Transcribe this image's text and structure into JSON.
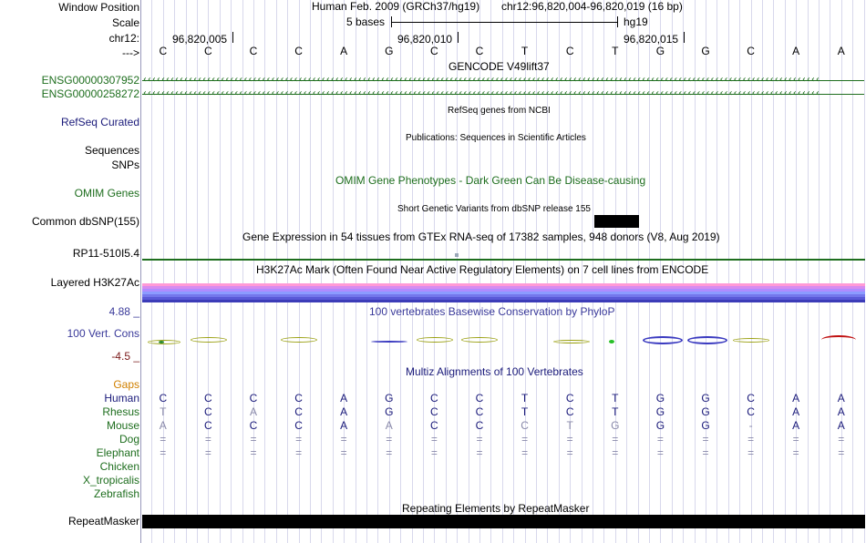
{
  "labels": {
    "window_position": "Window Position",
    "scale": "Scale",
    "chr": "chr12:",
    "arrow": "--->",
    "gene1": "ENSG00000307952",
    "gene2": "ENSG00000258272",
    "refseq": "RefSeq Curated",
    "sequences": "Sequences",
    "snps": "SNPs",
    "omim": "OMIM Genes",
    "dbsnp": "Common dbSNP(155)",
    "gtex_gene": "RP11-510I5.4",
    "h3k27ac": "Layered H3K27Ac",
    "phylop_max": "4.88 _",
    "cons": "100 Vert. Cons",
    "phylop_min": "-4.5 _",
    "gaps": "Gaps",
    "repeatmasker": "RepeatMasker"
  },
  "header": {
    "assembly": "Human Feb. 2009 (GRCh37/hg19)",
    "position": "chr12:96,820,004-96,820,019 (16 bp)",
    "scale_label": "5 bases",
    "scale_db": "hg19",
    "coords": [
      "96,820,005",
      "96,820,010",
      "96,820,015"
    ]
  },
  "bases": [
    "C",
    "C",
    "C",
    "C",
    "A",
    "G",
    "C",
    "C",
    "T",
    "C",
    "T",
    "G",
    "G",
    "C",
    "A",
    "A"
  ],
  "tracks": {
    "gencode": "GENCODE V49lift37",
    "refseq": "RefSeq genes from NCBI",
    "publications": "Publications: Sequences in Scientific Articles",
    "omim": "OMIM Gene Phenotypes - Dark Green Can Be Disease-causing",
    "dbsnp": "Short Genetic Variants from dbSNP release 155",
    "gtex": "Gene Expression in 54 tissues from GTEx RNA-seq of 17382 samples, 948 donors (V8, Aug 2019)",
    "h3k27ac": "H3K27Ac Mark (Often Found Near Active Regulatory Elements) on 7 cell lines from ENCODE",
    "phylop": "100 vertebrates Basewise Conservation by PhyloP",
    "multiz": "Multiz Alignments of 100 Vertebrates",
    "repeatmasker": "Repeating Elements by RepeatMasker"
  },
  "species": [
    {
      "name": "Human",
      "bases": [
        "C",
        "C",
        "C",
        "C",
        "A",
        "G",
        "C",
        "C",
        "T",
        "C",
        "T",
        "G",
        "G",
        "C",
        "A",
        "A"
      ]
    },
    {
      "name": "Rhesus",
      "bases": [
        "T",
        "C",
        "A",
        "C",
        "A",
        "G",
        "C",
        "C",
        "T",
        "C",
        "T",
        "G",
        "G",
        "C",
        "A",
        "A"
      ]
    },
    {
      "name": "Mouse",
      "bases": [
        "A",
        "C",
        "C",
        "C",
        "A",
        "A",
        "C",
        "C",
        "C",
        "T",
        "G",
        "G",
        "G",
        "-",
        "A",
        "A"
      ]
    },
    {
      "name": "Dog",
      "bases": [
        "=",
        "=",
        "=",
        "=",
        "=",
        "=",
        "=",
        "=",
        "=",
        "=",
        "=",
        "=",
        "=",
        "=",
        "=",
        "="
      ]
    },
    {
      "name": "Elephant",
      "bases": [
        "=",
        "=",
        "=",
        "=",
        "=",
        "=",
        "=",
        "=",
        "=",
        "=",
        "=",
        "=",
        "=",
        "=",
        "=",
        "="
      ]
    },
    {
      "name": "Chicken",
      "bases": []
    },
    {
      "name": "X_tropicalis",
      "bases": []
    },
    {
      "name": "Zebrafish",
      "bases": []
    }
  ],
  "colors": {
    "label_green": "#1e6e1e",
    "label_navy": "#1a1a7a",
    "phylop_blue": "#3a3a9a",
    "phylop_min_red": "#7a1a1a",
    "gaps_orange": "#d08000",
    "mismatch_gray": "#8a8aaa"
  }
}
